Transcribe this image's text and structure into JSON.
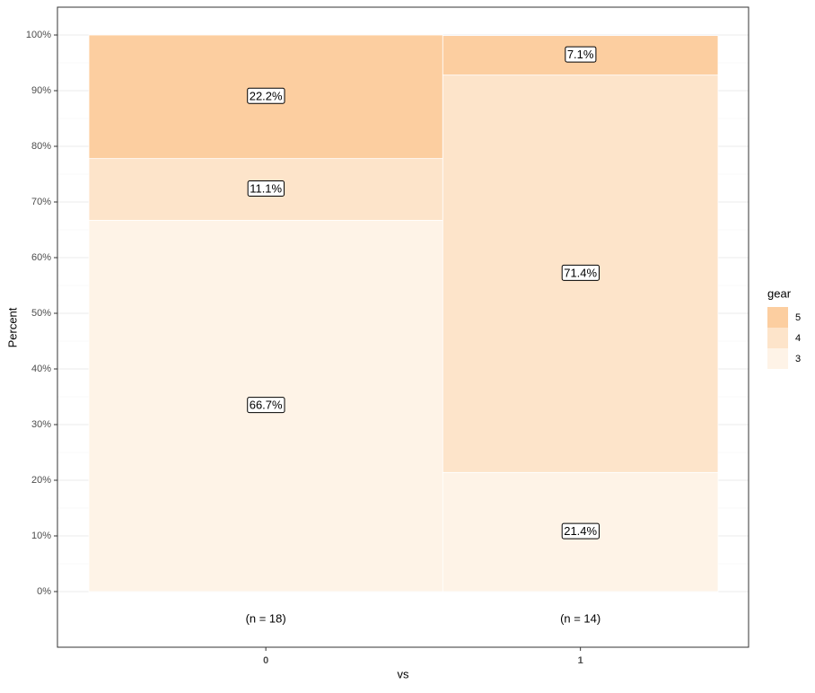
{
  "chart_data": {
    "type": "mosaic",
    "x_label": "vs",
    "y_label": "Percent",
    "legend_title": "gear",
    "categories": [
      "0",
      "1"
    ],
    "counts": [
      18,
      14
    ],
    "count_labels": [
      "(n = 18)",
      "(n = 14)"
    ],
    "series": [
      {
        "name": "3",
        "color": "#fef3e7",
        "values": [
          66.7,
          21.4
        ],
        "value_labels": [
          "66.7%",
          "21.4%"
        ]
      },
      {
        "name": "4",
        "color": "#fde4ca",
        "values": [
          11.1,
          71.4
        ],
        "value_labels": [
          "11.1%",
          "71.4%"
        ]
      },
      {
        "name": "5",
        "color": "#fccea0",
        "values": [
          22.2,
          7.1
        ],
        "value_labels": [
          "22.2%",
          "7.1%"
        ]
      }
    ],
    "ylim": [
      -10,
      105
    ],
    "yticks": [
      {
        "value": 0,
        "label": "0%"
      },
      {
        "value": 10,
        "label": "10%"
      },
      {
        "value": 20,
        "label": "20%"
      },
      {
        "value": 30,
        "label": "30%"
      },
      {
        "value": 40,
        "label": "40%"
      },
      {
        "value": 50,
        "label": "50%"
      },
      {
        "value": 60,
        "label": "60%"
      },
      {
        "value": 70,
        "label": "70%"
      },
      {
        "value": 80,
        "label": "80%"
      },
      {
        "value": 90,
        "label": "90%"
      },
      {
        "value": 100,
        "label": "100%"
      }
    ],
    "minor_yticks": [
      5,
      15,
      25,
      35,
      45,
      55,
      65,
      75,
      85,
      95
    ],
    "grid": true,
    "legend_position": "right"
  }
}
